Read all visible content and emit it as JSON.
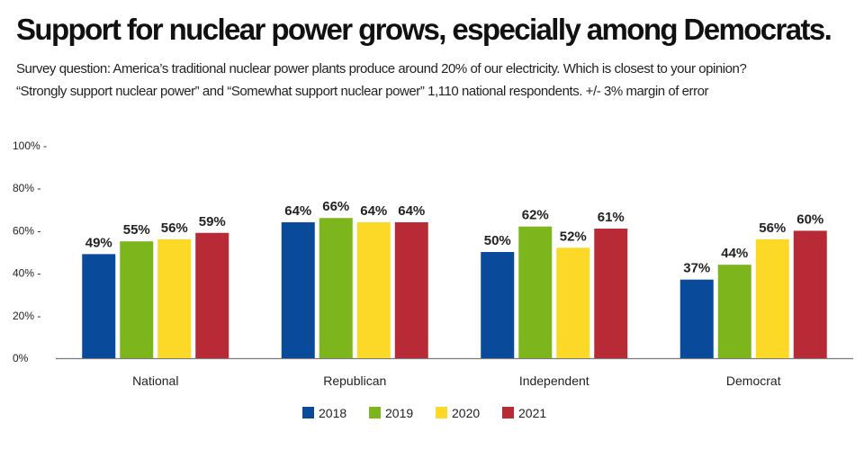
{
  "chart_data": {
    "type": "bar",
    "title": "Support for nuclear power grows, especially among Democrats.",
    "subtitle": [
      "Survey question: America’s traditional nuclear power plants produce around 20% of our electricity. Which is closest to your opinion?",
      "“Strongly support nuclear power” and “Somewhat support nuclear power” 1,110 national respondents. +/- 3% margin of error"
    ],
    "categories": [
      "National",
      "Republican",
      "Independent",
      "Democrat"
    ],
    "series": [
      {
        "name": "2018",
        "color": "#0a4a9a",
        "values": [
          49,
          64,
          50,
          37
        ]
      },
      {
        "name": "2019",
        "color": "#7db61c",
        "values": [
          55,
          66,
          62,
          44
        ]
      },
      {
        "name": "2020",
        "color": "#fbd926",
        "values": [
          56,
          64,
          52,
          56
        ]
      },
      {
        "name": "2021",
        "color": "#b82a35",
        "values": [
          59,
          64,
          61,
          60
        ]
      }
    ],
    "data_labels": [
      [
        "49%",
        "64%",
        "50%",
        "37%"
      ],
      [
        "55%",
        "66%",
        "62%",
        "44%"
      ],
      [
        "56%",
        "64%",
        "52%",
        "56%"
      ],
      [
        "59%",
        "64%",
        "61%",
        "60%"
      ]
    ],
    "yticks": [
      "0%",
      "20% -",
      "40% -",
      "60% -",
      "80% -",
      "100% -"
    ],
    "ylim": [
      0,
      100
    ],
    "xlabel": "",
    "ylabel": "",
    "grid": false,
    "legend": "bottom-center"
  }
}
